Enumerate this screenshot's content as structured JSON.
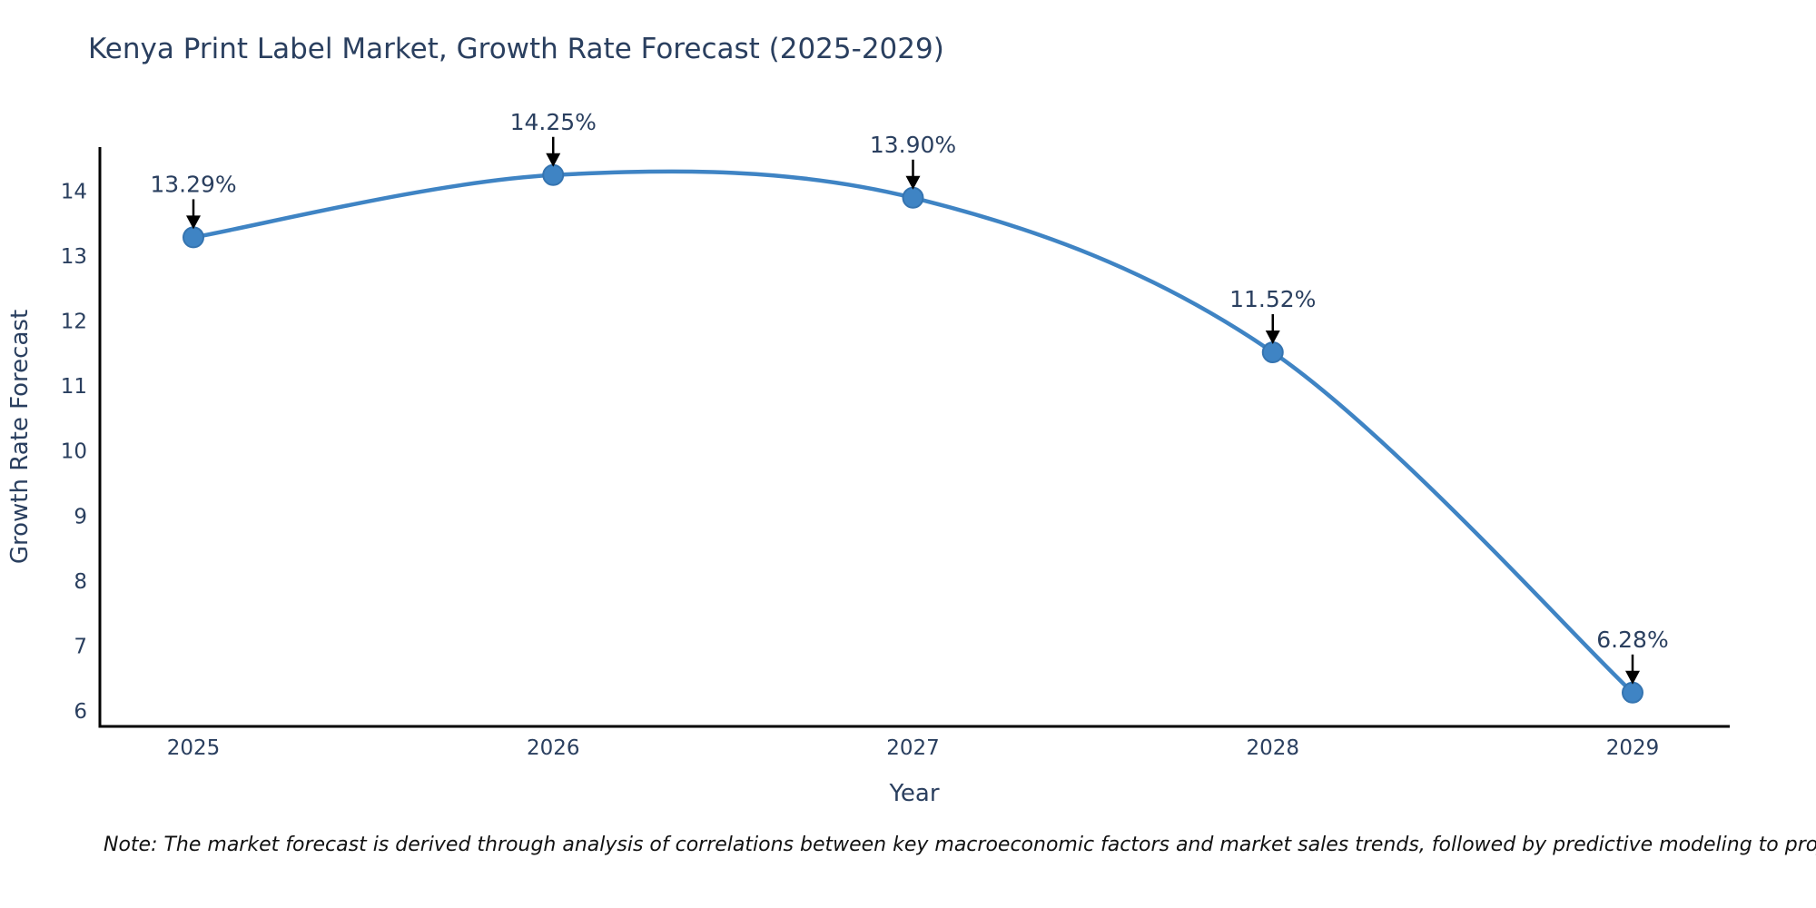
{
  "chart_data": {
    "type": "line",
    "title": "Kenya Print Label Market, Growth Rate Forecast (2025-2029)",
    "xlabel": "Year",
    "ylabel": "Growth Rate Forecast",
    "categories": [
      "2025",
      "2026",
      "2027",
      "2028",
      "2029"
    ],
    "values": [
      13.29,
      14.25,
      13.9,
      11.52,
      6.28
    ],
    "point_labels": [
      "13.29%",
      "14.25%",
      "13.90%",
      "11.52%",
      "6.28%"
    ],
    "y_ticks": [
      6,
      7,
      8,
      9,
      10,
      11,
      12,
      13,
      14
    ],
    "ylim": [
      5.76,
      14.68
    ],
    "grid": false,
    "legend": false,
    "colors": {
      "line": "#3f84c4",
      "marker_fill": "#3f84c4",
      "marker_stroke": "#3574b0",
      "axis": "#000000",
      "text": "#2a3f5f",
      "annotation_text": "#2a3f5f",
      "annotation_arrow": "#000000"
    }
  },
  "note": "Note: The market forecast is derived through analysis of correlations between key macroeconomic factors and market sales trends, followed by predictive modeling to project future sales."
}
